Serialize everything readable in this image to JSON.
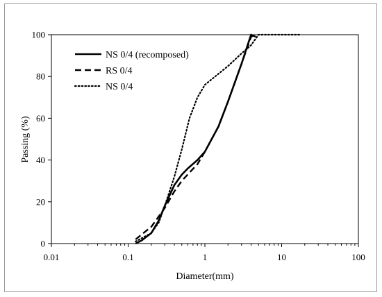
{
  "chart_data": {
    "type": "line",
    "xscale": "log",
    "xlim": [
      0.01,
      100
    ],
    "ylim": [
      0,
      100
    ],
    "xlabel": "Diameter(mm)",
    "ylabel": "Passing (%)",
    "xticks": [
      0.01,
      0.1,
      1,
      10,
      100
    ],
    "xtick_labels": [
      "0.01",
      "0.1",
      "1",
      "10",
      "100"
    ],
    "yticks": [
      0,
      20,
      40,
      60,
      80,
      100
    ],
    "ytick_labels": [
      "0",
      "20",
      "40",
      "60",
      "80",
      "100"
    ],
    "grid": false,
    "legend_position": "top-left",
    "series": [
      {
        "name": "NS 0/4 (recomposed)",
        "style": "solid",
        "x": [
          0.125,
          0.15,
          0.2,
          0.25,
          0.3,
          0.4,
          0.5,
          0.6,
          0.8,
          1.0,
          1.5,
          2.0,
          3.0,
          3.6,
          4.0,
          4.6
        ],
        "y": [
          0,
          1.5,
          5,
          11,
          18,
          28,
          33,
          36,
          40,
          44,
          56,
          68,
          86,
          95,
          100,
          99
        ]
      },
      {
        "name": "RS 0/4",
        "style": "dashed",
        "x": [
          0.125,
          0.2,
          0.3,
          0.4,
          0.5,
          0.63,
          0.8,
          1.0,
          1.5,
          2.0,
          3.0,
          4.0,
          4.5
        ],
        "y": [
          2,
          8,
          17,
          25,
          30,
          34,
          38,
          44,
          56,
          68,
          86,
          99,
          100
        ]
      },
      {
        "name": "NS 0/4",
        "style": "dotted",
        "x": [
          0.125,
          0.2,
          0.25,
          0.3,
          0.4,
          0.5,
          0.63,
          0.8,
          1.0,
          2.0,
          3.0,
          4.0,
          5.0,
          6.3,
          8.0,
          10,
          16,
          18
        ],
        "y": [
          1,
          5,
          10,
          18,
          32,
          45,
          60,
          70,
          76,
          85,
          91,
          95,
          100,
          100,
          100,
          100,
          100,
          100
        ]
      }
    ]
  }
}
